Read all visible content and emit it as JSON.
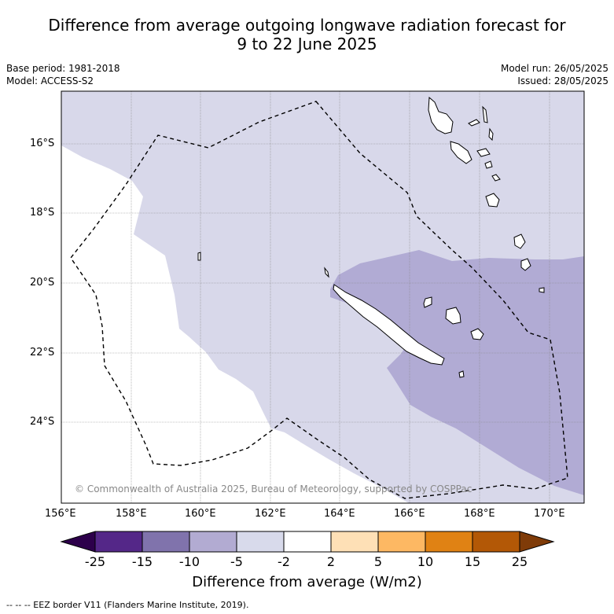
{
  "title": {
    "line1": "Difference from average outgoing longwave radiation forecast for",
    "line2": "9 to 22 June 2025"
  },
  "meta": {
    "base_period": "Base period: 1981-2018",
    "model": "Model: ACCESS-S2",
    "model_run": "Model run: 26/05/2025",
    "issued": "Issued: 28/05/2025"
  },
  "map": {
    "lat_labels": [
      "16°S",
      "18°S",
      "20°S",
      "22°S",
      "24°S"
    ],
    "lon_labels": [
      "156°E",
      "158°E",
      "160°E",
      "162°E",
      "164°E",
      "166°E",
      "168°E",
      "170°E"
    ],
    "copyright": "© Commonwealth of Australia 2025, Bureau of Meteorology, supported by COSPPac",
    "colors": {
      "light_purple": "#d8d8ea",
      "mid_purple": "#b1abd4",
      "border": "#000000"
    }
  },
  "colorbar": {
    "ticks": [
      "-25",
      "-15",
      "-10",
      "-5",
      "-2",
      "2",
      "5",
      "10",
      "15",
      "25"
    ],
    "colors": [
      "#2d004b",
      "#542788",
      "#8073ac",
      "#b2abd2",
      "#d8daeb",
      "#ffffff",
      "#fee0b6",
      "#fdb863",
      "#e08214",
      "#b35806",
      "#7f3b08"
    ],
    "title": "Difference from average (W/m2)"
  },
  "footnote": "--  --  -- EEZ border V11 (Flanders Marine Institute, 2019)."
}
